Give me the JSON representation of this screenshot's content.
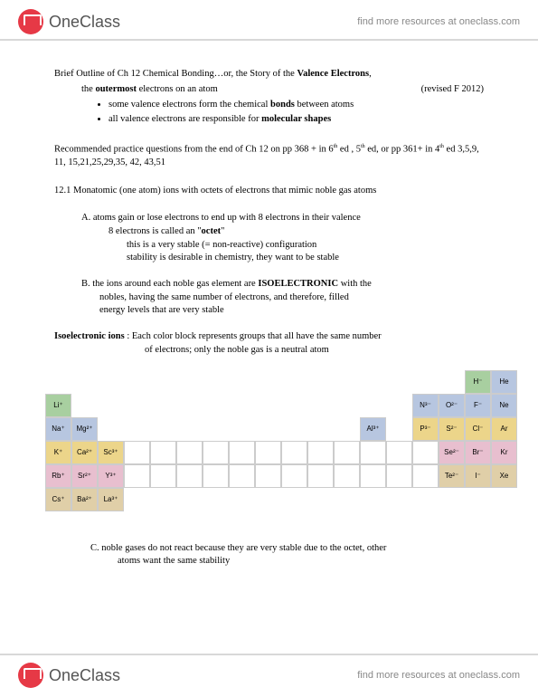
{
  "brand": {
    "name": "OneClass",
    "link_text": "find more resources at oneclass.com"
  },
  "title_line": "Brief Outline of Ch 12 Chemical Bonding…or, the Story of the ",
  "title_bold": "Valence Electrons",
  "subtitle_left_prefix": "the ",
  "subtitle_bold1": "outermost",
  "subtitle_left_suffix": " electrons on an atom",
  "subtitle_right": "(revised F 2012)",
  "bullets": [
    {
      "pre": "some valence electrons form the chemical ",
      "bold": "bonds",
      "post": " between atoms"
    },
    {
      "pre": "all valence electrons are responsible for ",
      "bold": "molecular shapes",
      "post": ""
    }
  ],
  "recommended_a": "Recommended practice questions from the end of Ch 12 on pp 368 + in 6",
  "recommended_b": " ed , 5",
  "recommended_c": " ed, or pp 361+ in 4",
  "recommended_d": " ed      3,5,9, 11, 15,21,25,29,35, 42, 43,51",
  "sec12_1": "12.1  Monatomic (one atom) ions with octets of electrons that mimic noble gas atoms",
  "pointA": {
    "lead": "A.   atoms gain or lose electrons to end up with 8 electrons in their valence",
    "l2": "8 electrons is called an \"",
    "l2b": "octet",
    "l2c": "\"",
    "l3": "this is a very stable  (= non-reactive)  configuration",
    "l4": "stability is desirable in chemistry, they want to be stable"
  },
  "pointB": {
    "lead_a": "B.  the ions around each noble gas element are ",
    "bold": "ISOELECTRONIC",
    "lead_b": " with the",
    "l2": "nobles, having the same number of electrons, and therefore, filled",
    "l3": "energy levels that are very stable"
  },
  "iso": {
    "label": "Isoelectronic ions",
    "text1": "Each color block represents groups that all have the same number",
    "text2": "of electrons;  only the noble gas is a neutral atom"
  },
  "periodic": {
    "row1": [
      null,
      null,
      null,
      null,
      null,
      null,
      null,
      null,
      null,
      null,
      null,
      null,
      null,
      null,
      null,
      null,
      {
        "t": "H⁻",
        "c": "c-green"
      },
      {
        "t": "He",
        "c": "c-blue"
      }
    ],
    "row2": [
      {
        "t": "Li⁺",
        "c": "c-green"
      },
      null,
      null,
      null,
      null,
      null,
      null,
      null,
      null,
      null,
      null,
      null,
      null,
      {
        "t": "N³⁻",
        "c": "c-blue"
      },
      {
        "t": "O²⁻",
        "c": "c-blue"
      },
      {
        "t": "F⁻",
        "c": "c-blue"
      },
      {
        "t": "Ne",
        "c": "c-blue"
      },
      null
    ],
    "row2_shift": [
      {
        "t": "Li⁺",
        "c": "c-green"
      },
      null,
      null,
      null,
      null,
      null,
      null,
      null,
      null,
      null,
      null,
      null,
      null,
      null,
      {
        "t": "N³⁻",
        "c": "c-blue"
      },
      {
        "t": "O²⁻",
        "c": "c-blue"
      },
      {
        "t": "F⁻",
        "c": "c-blue"
      },
      {
        "t": "Ne",
        "c": "c-blue"
      }
    ],
    "row3": [
      {
        "t": "Na⁺",
        "c": "c-blue"
      },
      {
        "t": "Mg²⁺",
        "c": "c-blue"
      },
      null,
      null,
      null,
      null,
      null,
      null,
      null,
      null,
      null,
      null,
      {
        "t": "Al³⁺",
        "c": "c-blue"
      },
      null,
      {
        "t": "P³⁻",
        "c": "c-yellow"
      },
      {
        "t": "S²⁻",
        "c": "c-yellow"
      },
      {
        "t": "Cl⁻",
        "c": "c-yellow"
      },
      {
        "t": "Ar",
        "c": "c-yellow"
      }
    ],
    "row4": [
      {
        "t": "K⁺",
        "c": "c-yellow"
      },
      {
        "t": "Ca²⁺",
        "c": "c-yellow"
      },
      {
        "t": "Sc³⁺",
        "c": "c-yellow"
      },
      {
        "t": "",
        "c": "c-white"
      },
      {
        "t": "",
        "c": "c-white"
      },
      {
        "t": "",
        "c": "c-white"
      },
      {
        "t": "",
        "c": "c-white"
      },
      {
        "t": "",
        "c": "c-white"
      },
      {
        "t": "",
        "c": "c-white"
      },
      {
        "t": "",
        "c": "c-white"
      },
      {
        "t": "",
        "c": "c-white"
      },
      {
        "t": "",
        "c": "c-white"
      },
      {
        "t": "",
        "c": "c-white"
      },
      {
        "t": "",
        "c": "c-white"
      },
      {
        "t": "",
        "c": "c-white"
      },
      {
        "t": "Se²⁻",
        "c": "c-pink"
      },
      {
        "t": "Br⁻",
        "c": "c-pink"
      },
      {
        "t": "Kr",
        "c": "c-pink"
      }
    ],
    "row5": [
      {
        "t": "Rb⁺",
        "c": "c-pink"
      },
      {
        "t": "Sr²⁺",
        "c": "c-pink"
      },
      {
        "t": "Y³⁺",
        "c": "c-pink"
      },
      {
        "t": "",
        "c": "c-white"
      },
      {
        "t": "",
        "c": "c-white"
      },
      {
        "t": "",
        "c": "c-white"
      },
      {
        "t": "",
        "c": "c-white"
      },
      {
        "t": "",
        "c": "c-white"
      },
      {
        "t": "",
        "c": "c-white"
      },
      {
        "t": "",
        "c": "c-white"
      },
      {
        "t": "",
        "c": "c-white"
      },
      {
        "t": "",
        "c": "c-white"
      },
      {
        "t": "",
        "c": "c-white"
      },
      {
        "t": "",
        "c": "c-white"
      },
      {
        "t": "",
        "c": "c-white"
      },
      {
        "t": "Te²⁻",
        "c": "c-tan"
      },
      {
        "t": "I⁻",
        "c": "c-tan"
      },
      {
        "t": "Xe",
        "c": "c-tan"
      }
    ],
    "row6": [
      {
        "t": "Cs⁺",
        "c": "c-tan"
      },
      {
        "t": "Ba²⁺",
        "c": "c-tan"
      },
      {
        "t": "La³⁺",
        "c": "c-tan"
      },
      null,
      null,
      null,
      null,
      null,
      null,
      null,
      null,
      null,
      null,
      null,
      null,
      null,
      null,
      null
    ]
  },
  "pointC": {
    "l1": "C.  noble gases do not react because they are very stable due to the octet, other",
    "l2": "atoms want the same stability"
  }
}
